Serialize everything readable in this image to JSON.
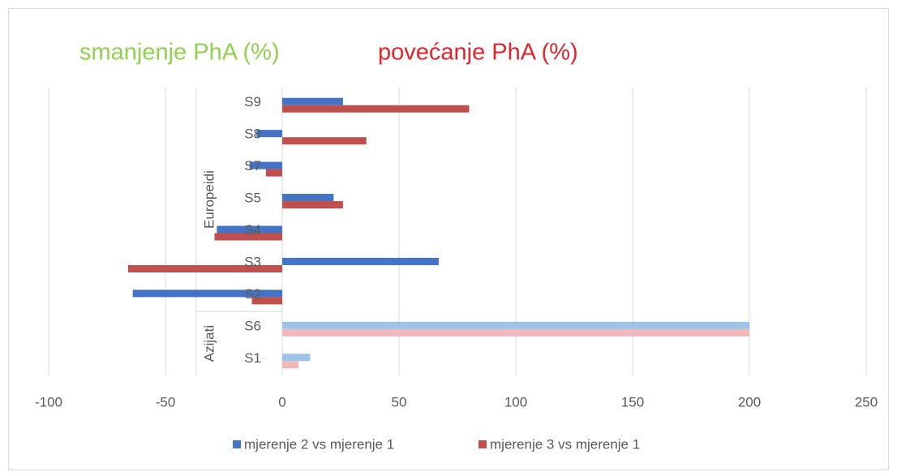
{
  "chart_data": {
    "type": "hbar",
    "annotations": [
      {
        "text": "smanjenje PhA  (%)",
        "color": "#92d050"
      },
      {
        "text": "povećanje PhA (%)",
        "color": "#e0262d"
      }
    ],
    "categories": [
      "S9",
      "S8",
      "S7",
      "S5",
      "S4",
      "S3",
      "S2",
      "S6",
      "S1"
    ],
    "groups": [
      {
        "label": "Europeidi",
        "categories": [
          "S9",
          "S8",
          "S7",
          "S5",
          "S4",
          "S3",
          "S2"
        ]
      },
      {
        "label": "Azijati",
        "categories": [
          "S6",
          "S1"
        ]
      }
    ],
    "series": [
      {
        "name": "mjerenje 2 vs mjerenje 1",
        "color": "#4472c4",
        "colors": [
          "#4472c4",
          "#4472c4",
          "#4472c4",
          "#4472c4",
          "#4472c4",
          "#4472c4",
          "#4472c4",
          "#9dc3e6",
          "#9dc3e6"
        ],
        "values": [
          26,
          -11,
          -14,
          22,
          -28,
          67,
          -64,
          200,
          12
        ]
      },
      {
        "name": "mjerenje 3 vs mjerenje 1",
        "color": "#c0504d",
        "colors": [
          "#c0504d",
          "#c0504d",
          "#c0504d",
          "#c0504d",
          "#c0504d",
          "#c0504d",
          "#c0504d",
          "#f0b8b8",
          "#f0b8b8"
        ],
        "values": [
          80,
          36,
          -7,
          26,
          -29,
          -66,
          -13,
          200,
          7
        ]
      }
    ],
    "xlim": [
      -100,
      250
    ],
    "xticks": [
      -100,
      -50,
      0,
      50,
      100,
      150,
      200,
      250
    ],
    "grid": true,
    "legend": "bottom"
  }
}
